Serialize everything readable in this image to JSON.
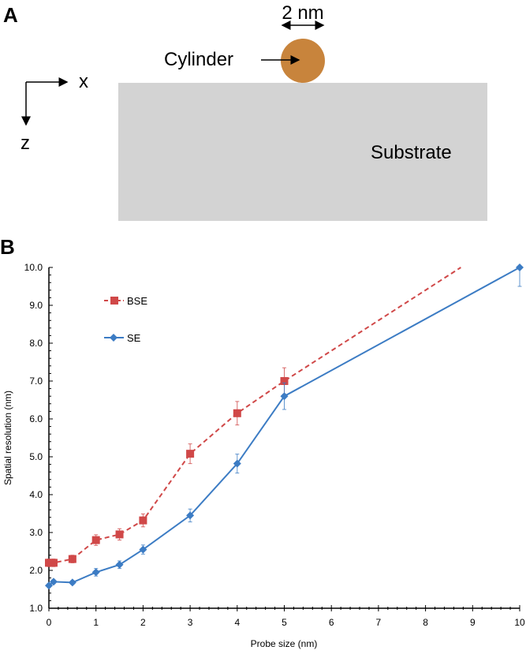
{
  "panel_a": {
    "label": "A",
    "scale_label": "2 nm",
    "cylinder_label": "Cylinder",
    "substrate_label": "Substrate",
    "axis_x": "x",
    "axis_z": "z",
    "colors": {
      "cylinder": "#c8843c",
      "substrate": "#d3d3d3"
    }
  },
  "panel_b": {
    "label": "B"
  },
  "chart_data": {
    "type": "line",
    "xlabel": "Probe size (nm)",
    "ylabel": "Spatial resolution (nm)",
    "xlim": [
      0,
      10
    ],
    "ylim": [
      1.0,
      10.0
    ],
    "xticks": [
      "0",
      "1",
      "2",
      "3",
      "4",
      "5",
      "6",
      "7",
      "8",
      "9",
      "10"
    ],
    "yticks": [
      "1.0",
      "2.0",
      "3.0",
      "4.0",
      "5.0",
      "6.0",
      "7.0",
      "8.0",
      "9.0",
      "10.0"
    ],
    "legend_placement": "top-left",
    "grid": false,
    "series": [
      {
        "name": "BSE",
        "color": "#d04848",
        "style": "dashed",
        "marker": "square",
        "x": [
          0,
          0.1,
          0.5,
          1,
          1.5,
          2,
          3,
          4,
          5
        ],
        "y": [
          2.2,
          2.2,
          2.3,
          2.8,
          2.95,
          3.32,
          5.08,
          6.15,
          7.0
        ],
        "err": [
          0.1,
          0.1,
          0.1,
          0.14,
          0.15,
          0.17,
          0.26,
          0.31,
          0.35
        ],
        "extension_to": [
          8.75,
          10.0
        ]
      },
      {
        "name": "SE",
        "color": "#3c7cc4",
        "style": "solid",
        "marker": "diamond",
        "x": [
          0,
          0.1,
          0.5,
          1,
          1.5,
          2,
          3,
          4,
          5,
          10
        ],
        "y": [
          1.6,
          1.7,
          1.68,
          1.95,
          2.15,
          2.55,
          3.45,
          4.82,
          6.6,
          10.0
        ],
        "err": [
          0.05,
          0.05,
          0.05,
          0.1,
          0.1,
          0.12,
          0.17,
          0.25,
          0.35,
          0.5
        ]
      }
    ]
  }
}
